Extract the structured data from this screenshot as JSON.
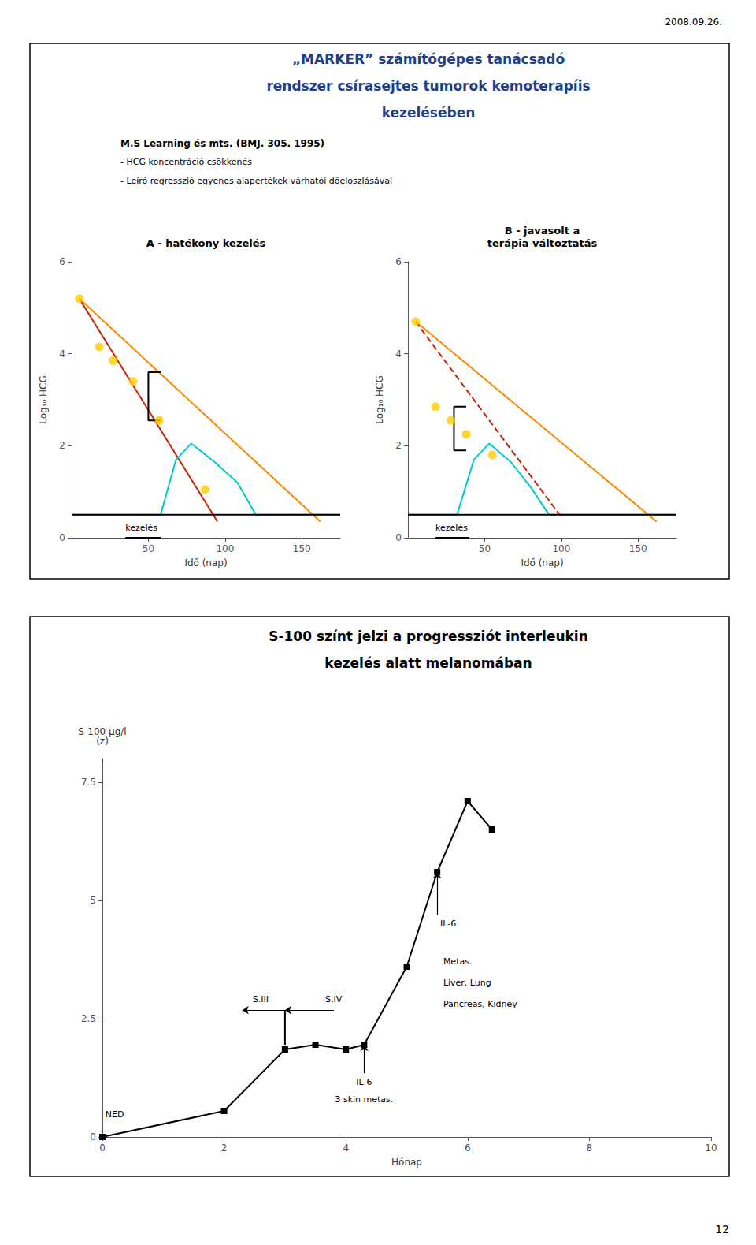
{
  "annotations": [
    {
      "text": "2008.09.26."
    },
    {
      "text": "12"
    }
  ],
  "chart_data": [
    {
      "type": "line",
      "title": "A - hatékony kezelés",
      "subtitle": [
        "„MARKER” számítógépes tanácsadó",
        "rendszer csírasejtes tumorok kemoterapíis",
        "kezelésében"
      ],
      "color": "#1f3e8c",
      "xlabel": "Idő (nap)",
      "ylabel": "Log₁₀ HCG",
      "xlim": [
        0,
        175
      ],
      "xticks": [
        50,
        100,
        150
      ],
      "ylim": [
        0,
        6
      ],
      "yticks": [
        0,
        2,
        4,
        6
      ],
      "grid": false,
      "series": [
        {
          "type": "line",
          "color": "#ff8800",
          "x": [
            5,
            162
          ],
          "values": [
            5.2,
            0.35
          ]
        },
        {
          "type": "line",
          "color": "#cc2200",
          "x": [
            5,
            95
          ],
          "values": [
            5.2,
            0.35
          ]
        },
        {
          "type": "scatter",
          "color": "#ffcc00",
          "marker": "circle",
          "x": [
            5,
            18,
            27,
            40,
            57,
            87
          ],
          "values": [
            5.2,
            4.15,
            3.85,
            3.4,
            2.55,
            1.05
          ]
        },
        {
          "type": "line",
          "color": "#000000",
          "x": [
            58,
            50,
            50,
            58
          ],
          "values": [
            3.6,
            3.6,
            2.55,
            2.55
          ]
        },
        {
          "type": "line",
          "color": "#00cccc",
          "x": [
            0,
            58,
            68,
            78,
            93,
            108,
            120,
            175
          ],
          "values": [
            0.5,
            0.5,
            1.7,
            2.05,
            1.65,
            1.2,
            0.5,
            0.5
          ]
        },
        {
          "type": "line",
          "color": "#000000",
          "x": [
            35,
            58
          ],
          "values": [
            0,
            0
          ]
        },
        {
          "type": "line",
          "color": "#000000",
          "x": [
            0,
            175
          ],
          "values": [
            0.5,
            0.5
          ]
        }
      ],
      "annotations": [
        {
          "text": "M.S Learning és mts. (BMJ. 305. 1995)"
        },
        {
          "text": "- HCG koncentráció csökkenés"
        },
        {
          "text": "- Leíró regresszió egyenes alapertékek várhatói dőeloszlásával"
        },
        {
          "text": "kezelés",
          "x": 35,
          "y": 0.12
        }
      ]
    },
    {
      "type": "line",
      "title": "B - javasolt a\nterápia változtatás",
      "xlabel": "Idő (nap)",
      "ylabel": "Log₁₀ HCG",
      "xlim": [
        0,
        175
      ],
      "xticks": [
        50,
        100,
        150
      ],
      "ylim": [
        0,
        6
      ],
      "yticks": [
        0,
        2,
        4,
        6
      ],
      "grid": false,
      "series": [
        {
          "type": "line",
          "color": "#ff8800",
          "x": [
            5,
            162
          ],
          "values": [
            4.7,
            0.35
          ]
        },
        {
          "type": "line",
          "color": "#cc2200",
          "line_style": "dashed",
          "x": [
            5,
            100
          ],
          "values": [
            4.7,
            0.45
          ]
        },
        {
          "type": "scatter",
          "color": "#ffcc00",
          "marker": "circle",
          "x": [
            5,
            18,
            28,
            38,
            55
          ],
          "values": [
            4.7,
            2.85,
            2.55,
            2.25,
            1.8
          ]
        },
        {
          "type": "line",
          "color": "#000000",
          "x": [
            38,
            30,
            30,
            38
          ],
          "values": [
            2.85,
            2.85,
            1.9,
            1.9
          ]
        },
        {
          "type": "line",
          "color": "#00cccc",
          "x": [
            0,
            32,
            43,
            53,
            67,
            80,
            92,
            175
          ],
          "values": [
            0.5,
            0.5,
            1.7,
            2.05,
            1.65,
            1.1,
            0.5,
            0.5
          ]
        },
        {
          "type": "line",
          "color": "#000000",
          "x": [
            18,
            40
          ],
          "values": [
            0,
            0
          ]
        },
        {
          "type": "line",
          "color": "#000000",
          "x": [
            0,
            175
          ],
          "values": [
            0.5,
            0.5
          ]
        }
      ],
      "annotations": [
        {
          "text": "kezelés",
          "x": 18,
          "y": 0.12
        }
      ]
    },
    {
      "type": "line",
      "subtitle": [
        "S-100 színt jelzi a progressziót interleukin",
        "kezelés alatt melanomában"
      ],
      "xlabel": "Hónap",
      "ylabel": [
        "S-100 µg/l",
        "(z)"
      ],
      "xlim": [
        0,
        10
      ],
      "xticks": [
        0,
        2,
        4,
        6,
        8,
        10
      ],
      "ylim": [
        0,
        8
      ],
      "yticks": [
        0,
        2.5,
        5,
        7.5
      ],
      "grid": false,
      "series": [
        {
          "type": "line",
          "color": "#000000",
          "marker": "square",
          "x": [
            0,
            2,
            3,
            3.5,
            4,
            4.3,
            5.0,
            5.5,
            6.0,
            6.4
          ],
          "values": [
            0.0,
            0.55,
            1.85,
            1.95,
            1.85,
            1.95,
            3.6,
            5.6,
            7.1,
            6.5
          ]
        },
        {
          "type": "line",
          "color": "#000000",
          "x": [
            3.0,
            3.0
          ],
          "values": [
            1.95,
            2.68
          ]
        }
      ],
      "arrows": [
        {
          "x": [
            3.0,
            2.3
          ],
          "y": [
            2.68,
            2.68
          ]
        },
        {
          "x": [
            3.8,
            3.0
          ],
          "y": [
            2.68,
            2.68
          ]
        },
        {
          "x": [
            4.3,
            4.3
          ],
          "y": [
            1.35,
            1.95
          ]
        },
        {
          "x": [
            5.5,
            5.5
          ],
          "y": [
            4.7,
            5.6
          ]
        }
      ],
      "annotations": [
        {
          "text": "NED",
          "x": 0.05,
          "y": 0.38
        },
        {
          "text": "S.III",
          "x": 2.6,
          "y": 2.82
        },
        {
          "text": "S.IV",
          "x": 3.8,
          "y": 2.82
        },
        {
          "text": "IL-6",
          "x": 4.3,
          "y": 1.25
        },
        {
          "text": "3 skin metas.",
          "x": 4.3,
          "y": 0.88
        },
        {
          "text": "IL-6",
          "x": 5.55,
          "y": 4.6
        },
        {
          "text": "Metas.",
          "x": 5.6,
          "y": 3.8
        },
        {
          "text": "Liver, Lung",
          "x": 5.6,
          "y": 3.35
        },
        {
          "text": "Pancreas, Kidney",
          "x": 5.6,
          "y": 2.9
        }
      ]
    }
  ]
}
